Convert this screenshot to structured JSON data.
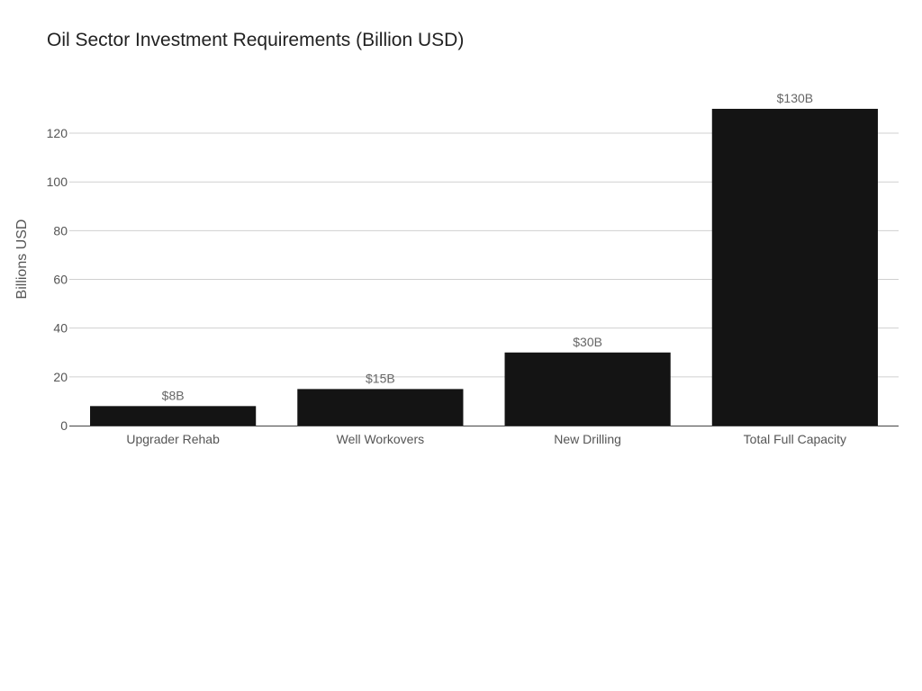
{
  "chart_data": {
    "type": "bar",
    "title": "Oil Sector Investment Requirements (Billion USD)",
    "xlabel": "",
    "ylabel": "Billions USD",
    "categories": [
      "Upgrader Rehab",
      "Well Workovers",
      "New Drilling",
      "Total Full Capacity"
    ],
    "values": [
      8,
      15,
      30,
      130
    ],
    "data_labels": [
      "$8B",
      "$15B",
      "$30B",
      "$130B"
    ],
    "ylim": [
      0,
      137
    ],
    "yticks": [
      0,
      20,
      40,
      60,
      80,
      100,
      120
    ],
    "grid": true,
    "bar_color": "#141414"
  }
}
